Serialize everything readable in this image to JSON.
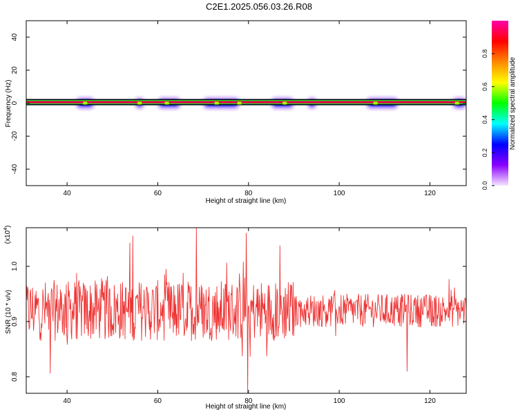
{
  "title": "C2E1.2025.056.03.26.R08",
  "chart_data": [
    {
      "type": "heatmap",
      "xlabel": "Height of straight line (km)",
      "ylabel": "Frequency (Hz)",
      "xlim": [
        31,
        128
      ],
      "ylim": [
        -50,
        50
      ],
      "x_ticks": [
        "40",
        "60",
        "80",
        "100",
        "120"
      ],
      "y_ticks": [
        "40",
        "20",
        "0",
        "-20",
        "-40"
      ],
      "x_tick_values": [
        40,
        60,
        80,
        100,
        120
      ],
      "y_tick_values": [
        40,
        20,
        0,
        -20,
        -40
      ],
      "colorbar": {
        "label": "Normalized spectral amplitude",
        "range": [
          0,
          1
        ],
        "ticks": [
          "0.0",
          "0.2",
          "0.4",
          "0.6",
          "0.8"
        ],
        "tick_values": [
          0,
          0.2,
          0.4,
          0.6,
          0.8
        ],
        "colors": [
          "#f6e6ff",
          "#8a00ff",
          "#0000ff",
          "#00ffff",
          "#00ff00",
          "#ffff00",
          "#ff8800",
          "#ff0000",
          "#ff00aa"
        ]
      },
      "band": {
        "center_hz": 0,
        "halfwidth_hz": 2,
        "peak_amplitude": 0.95
      },
      "bright_gaps_km": [
        44,
        56,
        62,
        73,
        78,
        88,
        108,
        126
      ],
      "spread_regions_km": [
        [
          42,
          46
        ],
        [
          55,
          57
        ],
        [
          60,
          65
        ],
        [
          70,
          78
        ],
        [
          85,
          90
        ],
        [
          93,
          95
        ],
        [
          106,
          113
        ],
        [
          125,
          128
        ]
      ]
    },
    {
      "type": "line",
      "xlabel": "Height of straight line (km)",
      "ylabel": "SNR (10 * v/v)",
      "multiplier_label": "(x10",
      "multiplier_exp": "4",
      "xlim": [
        31,
        128
      ],
      "ylim": [
        0.77,
        1.07
      ],
      "x_ticks": [
        "40",
        "60",
        "80",
        "100",
        "120"
      ],
      "y_ticks": [
        "1.0",
        "0.9",
        "0.8"
      ],
      "x_tick_values": [
        40,
        60,
        80,
        100,
        120
      ],
      "y_tick_values": [
        1.0,
        0.9,
        0.8
      ],
      "series": [
        {
          "color": "#ee3333",
          "baseline": 0.92,
          "min": 0.77,
          "max": 1.07,
          "amplitude_by_region": [
            {
              "x": [
                31,
                90
              ],
              "amp": 0.055
            },
            {
              "x": [
                90,
                128
              ],
              "amp": 0.03
            }
          ],
          "notable_points": [
            {
              "x": 68.5,
              "y": 1.07
            },
            {
              "x": 79.5,
              "y": 1.06
            },
            {
              "x": 79.8,
              "y": 0.77
            },
            {
              "x": 54.5,
              "y": 1.055
            },
            {
              "x": 115,
              "y": 0.81
            }
          ]
        }
      ]
    }
  ]
}
